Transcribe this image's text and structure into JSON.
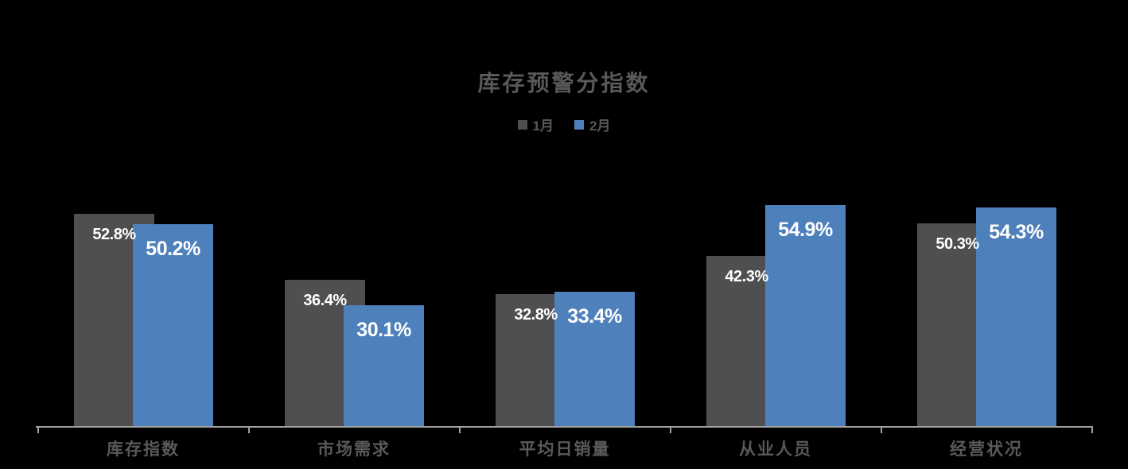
{
  "chart_data": {
    "type": "bar",
    "title": "库存预警分指数",
    "categories": [
      "库存指数",
      "市场需求",
      "平均日销量",
      "从业人员",
      "经营状况"
    ],
    "series": [
      {
        "name": "1月",
        "color": "#4f4f51",
        "values": [
          52.8,
          36.4,
          32.8,
          42.3,
          50.3
        ],
        "labels": [
          "52.8%",
          "36.4%",
          "32.8%",
          "42.3%",
          "50.3%"
        ]
      },
      {
        "name": "2月",
        "color": "#4e80bb",
        "values": [
          50.2,
          30.1,
          33.4,
          54.9,
          54.3
        ],
        "labels": [
          "50.2%",
          "30.1%",
          "33.4%",
          "54.9%",
          "54.3%"
        ]
      }
    ],
    "value_suffix": "%",
    "ylim": [
      0,
      60
    ],
    "grid": false,
    "legend_position": "top",
    "xlabel": "",
    "ylabel": ""
  },
  "colors": {
    "background": "#000000",
    "title_text": "#595959",
    "category_label_text": "#595959",
    "legend_text": "#595959",
    "axis_line": "#a0a0a0",
    "value_label_text": "#ffffff",
    "series_january": "#4f4f51",
    "series_february": "#4e80bb"
  }
}
